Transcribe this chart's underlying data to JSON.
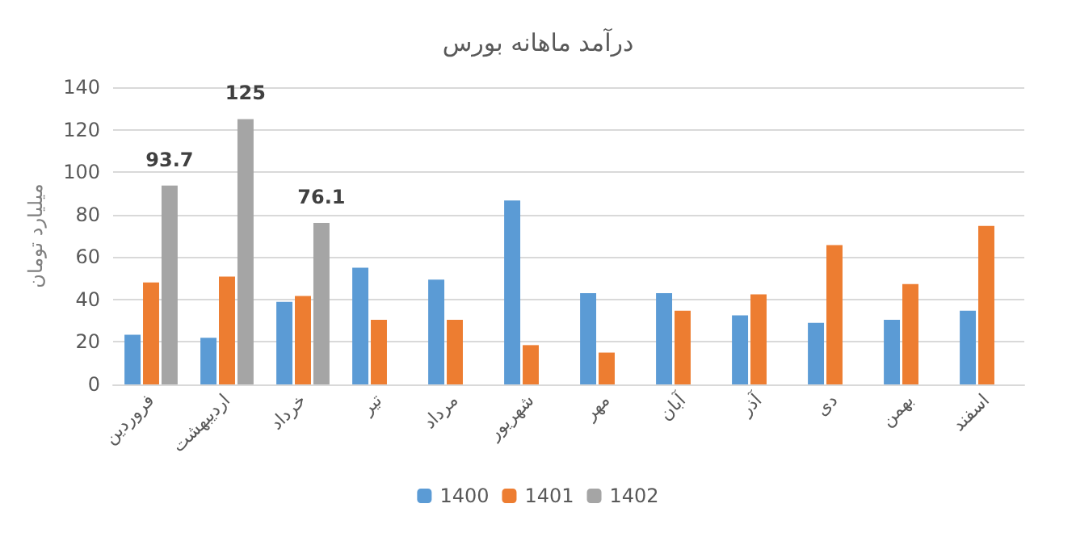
{
  "chart_data": {
    "type": "bar",
    "title": "درآمد ماهانه بورس",
    "ylabel": "میلیارد تومان",
    "categories": [
      "فروردین",
      "اردیبهشت",
      "خرداد",
      "تیر",
      "مرداد",
      "شهریور",
      "مهر",
      "آبان",
      "آذر",
      "دی",
      "بهمن",
      "اسفند"
    ],
    "series": [
      {
        "name": "1400",
        "color": "#5b9bd5",
        "values": [
          23.4,
          22,
          38.9,
          55,
          49.4,
          86.6,
          43,
          43,
          32.5,
          29,
          30.4,
          34.7
        ]
      },
      {
        "name": "1401",
        "color": "#ed7d31",
        "values": [
          48,
          50.8,
          41.7,
          30.4,
          30.4,
          18.5,
          15,
          34.7,
          42.4,
          65.6,
          47.3,
          74.7
        ]
      },
      {
        "name": "1402",
        "color": "#a5a5a5",
        "values": [
          93.7,
          125,
          76.1,
          null,
          null,
          null,
          null,
          null,
          null,
          null,
          null,
          null
        ],
        "value_labels": [
          "93.7",
          "125",
          "76.1",
          null,
          null,
          null,
          null,
          null,
          null,
          null,
          null,
          null
        ]
      }
    ],
    "ylim": [
      0,
      140
    ],
    "yticks": [
      0,
      20,
      40,
      60,
      80,
      100,
      120,
      140
    ],
    "grid": "y",
    "legend": "bottom"
  }
}
